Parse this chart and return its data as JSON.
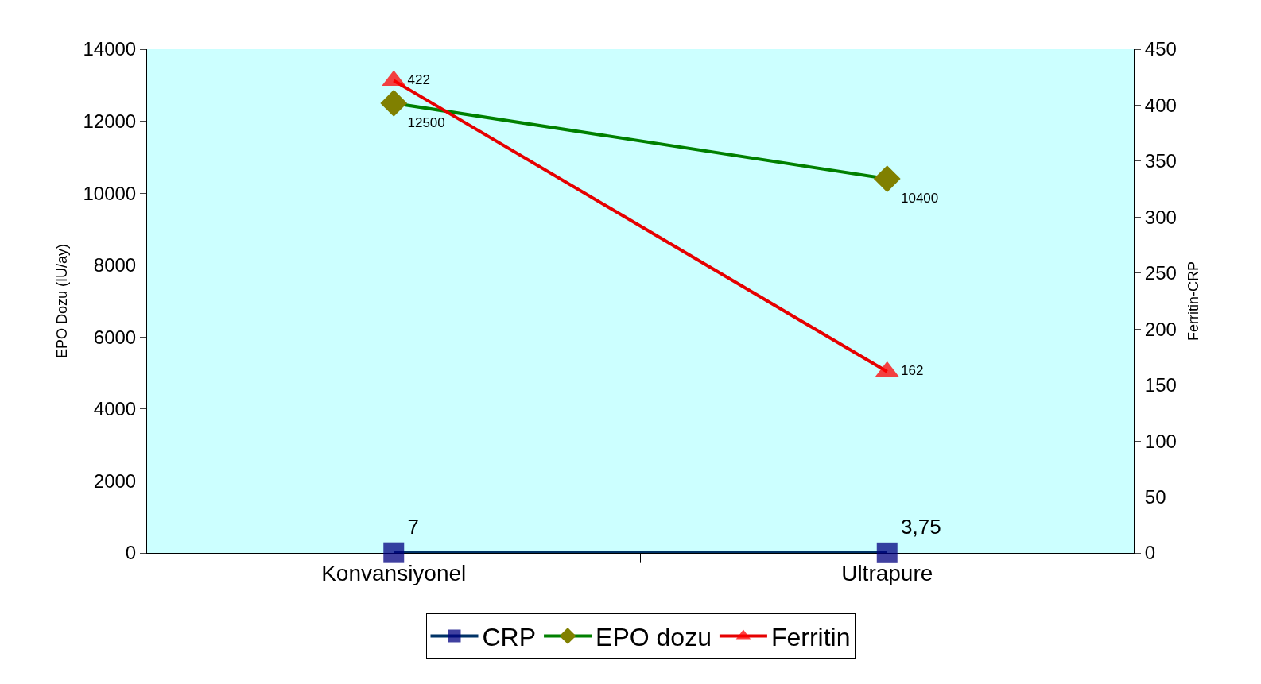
{
  "chart_data": {
    "type": "line",
    "ylabel": "EPO Dozu (IU/ay)",
    "y2label": "Ferritin-CRP",
    "categories": [
      "Konvansiyonel",
      "Ultrapure"
    ],
    "series": [
      {
        "name": "CRP",
        "color": "#003366",
        "colors": [
          "#000080",
          "#000080"
        ],
        "marker": "square",
        "values": [
          7,
          3.75
        ],
        "value_labels": [
          "7",
          "3,75"
        ]
      },
      {
        "name": "EPO dozu",
        "color": "#008000",
        "colors": [
          "#808000",
          "#808000"
        ],
        "marker": "diamond",
        "values": [
          12500,
          10400
        ],
        "value_labels": [
          "12500",
          "10400"
        ]
      },
      {
        "name": "Ferritin",
        "color": "#e60000",
        "colors": [
          "#ff0000",
          "#ff0000"
        ],
        "marker": "triangle",
        "values": [
          422,
          162
        ],
        "value_labels": [
          "422",
          "162"
        ],
        "axis": "y2"
      }
    ],
    "ylim": [
      0,
      14000
    ],
    "yticks": [
      0,
      2000,
      4000,
      6000,
      8000,
      10000,
      12000,
      14000
    ],
    "y2lim": [
      0,
      450
    ],
    "y2ticks": [
      0,
      50,
      100,
      150,
      200,
      250,
      300,
      350,
      400,
      450
    ],
    "grid": false,
    "legend": "bottom"
  }
}
